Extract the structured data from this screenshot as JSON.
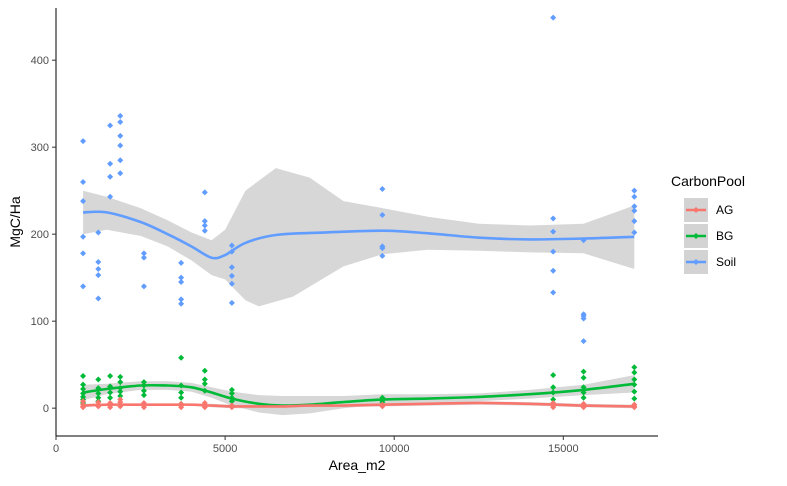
{
  "chart_data": {
    "type": "scatter",
    "xlabel": "Area_m2",
    "ylabel": "MgC/Ha",
    "xlim": [
      0,
      17800
    ],
    "ylim": [
      -32,
      460
    ],
    "x_ticks": [
      0,
      5000,
      10000,
      15000
    ],
    "y_ticks": [
      0,
      100,
      200,
      300,
      400
    ],
    "grid": false,
    "legend": {
      "title": "CarbonPool",
      "placement": "right",
      "entries": [
        "AG",
        "BG",
        "Soil"
      ]
    },
    "colors": {
      "AG": "#f8766d",
      "BG": "#00ba38",
      "Soil": "#619cff",
      "band": "#d3d3d3"
    },
    "series": [
      {
        "name": "Soil",
        "color": "#619cff",
        "points": [
          [
            800,
            307
          ],
          [
            800,
            260
          ],
          [
            800,
            238
          ],
          [
            800,
            197
          ],
          [
            800,
            178
          ],
          [
            800,
            140
          ],
          [
            1250,
            202
          ],
          [
            1250,
            168
          ],
          [
            1250,
            160
          ],
          [
            1250,
            153
          ],
          [
            1250,
            126
          ],
          [
            1600,
            325
          ],
          [
            1600,
            281
          ],
          [
            1600,
            266
          ],
          [
            1600,
            243
          ],
          [
            1900,
            336
          ],
          [
            1900,
            329
          ],
          [
            1900,
            313
          ],
          [
            1900,
            302
          ],
          [
            1900,
            285
          ],
          [
            1900,
            270
          ],
          [
            2600,
            178
          ],
          [
            2600,
            173
          ],
          [
            2600,
            140
          ],
          [
            3700,
            167
          ],
          [
            3700,
            150
          ],
          [
            3700,
            145
          ],
          [
            3700,
            125
          ],
          [
            3700,
            120
          ],
          [
            4400,
            248
          ],
          [
            4400,
            215
          ],
          [
            4400,
            210
          ],
          [
            4400,
            204
          ],
          [
            5200,
            187
          ],
          [
            5200,
            180
          ],
          [
            5200,
            162
          ],
          [
            5200,
            152
          ],
          [
            5200,
            143
          ],
          [
            5200,
            121
          ],
          [
            9650,
            252
          ],
          [
            9650,
            222
          ],
          [
            9650,
            186
          ],
          [
            9650,
            184
          ],
          [
            9650,
            175
          ],
          [
            14700,
            449
          ],
          [
            14700,
            218
          ],
          [
            14700,
            203
          ],
          [
            14700,
            180
          ],
          [
            14700,
            158
          ],
          [
            14700,
            133
          ],
          [
            15600,
            193
          ],
          [
            15600,
            108
          ],
          [
            15600,
            106
          ],
          [
            15600,
            103
          ],
          [
            15600,
            77
          ],
          [
            17100,
            250
          ],
          [
            17100,
            243
          ],
          [
            17100,
            232
          ],
          [
            17100,
            227
          ],
          [
            17100,
            215
          ],
          [
            17100,
            202
          ]
        ],
        "smooth": [
          [
            800,
            225
          ],
          [
            1500,
            225
          ],
          [
            2500,
            214
          ],
          [
            3300,
            200
          ],
          [
            4000,
            186
          ],
          [
            4600,
            173
          ],
          [
            5000,
            176
          ],
          [
            5600,
            190
          ],
          [
            6500,
            199
          ],
          [
            8000,
            202
          ],
          [
            9650,
            204
          ],
          [
            11000,
            201
          ],
          [
            12500,
            196
          ],
          [
            14000,
            194
          ],
          [
            15600,
            195
          ],
          [
            17100,
            197
          ]
        ],
        "band_upper": [
          [
            800,
            250
          ],
          [
            1500,
            243
          ],
          [
            2500,
            230
          ],
          [
            3300,
            216
          ],
          [
            4000,
            202
          ],
          [
            4600,
            193
          ],
          [
            5000,
            205
          ],
          [
            5600,
            250
          ],
          [
            6500,
            276
          ],
          [
            7500,
            265
          ],
          [
            8500,
            238
          ],
          [
            9650,
            230
          ],
          [
            11000,
            220
          ],
          [
            12500,
            212
          ],
          [
            14000,
            210
          ],
          [
            15600,
            212
          ],
          [
            17100,
            233
          ]
        ],
        "band_lower": [
          [
            800,
            200
          ],
          [
            1500,
            205
          ],
          [
            2500,
            198
          ],
          [
            3300,
            186
          ],
          [
            4000,
            170
          ],
          [
            4600,
            153
          ],
          [
            5000,
            148
          ],
          [
            5600,
            124
          ],
          [
            6000,
            117
          ],
          [
            7000,
            128
          ],
          [
            8500,
            163
          ],
          [
            9650,
            177
          ],
          [
            11000,
            182
          ],
          [
            12500,
            181
          ],
          [
            14000,
            179
          ],
          [
            15600,
            178
          ],
          [
            17100,
            160
          ]
        ]
      },
      {
        "name": "BG",
        "color": "#00ba38",
        "points": [
          [
            800,
            37
          ],
          [
            800,
            27
          ],
          [
            800,
            22
          ],
          [
            800,
            17
          ],
          [
            800,
            13
          ],
          [
            800,
            10
          ],
          [
            800,
            6
          ],
          [
            1250,
            33
          ],
          [
            1250,
            23
          ],
          [
            1250,
            17
          ],
          [
            1250,
            12
          ],
          [
            1250,
            8
          ],
          [
            1600,
            37
          ],
          [
            1600,
            25
          ],
          [
            1600,
            18
          ],
          [
            1600,
            12
          ],
          [
            1900,
            36
          ],
          [
            1900,
            30
          ],
          [
            1900,
            23
          ],
          [
            1900,
            19
          ],
          [
            1900,
            14
          ],
          [
            2600,
            30
          ],
          [
            2600,
            26
          ],
          [
            2600,
            20
          ],
          [
            2600,
            15
          ],
          [
            3700,
            58
          ],
          [
            3700,
            26
          ],
          [
            3700,
            18
          ],
          [
            3700,
            12
          ],
          [
            3700,
            5
          ],
          [
            4400,
            43
          ],
          [
            4400,
            33
          ],
          [
            4400,
            28
          ],
          [
            4400,
            20
          ],
          [
            5200,
            21
          ],
          [
            5200,
            17
          ],
          [
            5200,
            12
          ],
          [
            5200,
            8
          ],
          [
            9650,
            12
          ],
          [
            9650,
            9
          ],
          [
            9650,
            7
          ],
          [
            14700,
            38
          ],
          [
            14700,
            24
          ],
          [
            14700,
            18
          ],
          [
            14700,
            10
          ],
          [
            14700,
            5
          ],
          [
            15600,
            42
          ],
          [
            15600,
            35
          ],
          [
            15600,
            24
          ],
          [
            15600,
            18
          ],
          [
            15600,
            12
          ],
          [
            17100,
            47
          ],
          [
            17100,
            41
          ],
          [
            17100,
            33
          ],
          [
            17100,
            27
          ],
          [
            17100,
            19
          ],
          [
            17100,
            11
          ]
        ],
        "smooth": [
          [
            800,
            18
          ],
          [
            1500,
            22
          ],
          [
            2500,
            26
          ],
          [
            3300,
            26
          ],
          [
            4000,
            24
          ],
          [
            4600,
            18
          ],
          [
            5200,
            11
          ],
          [
            6000,
            5
          ],
          [
            6700,
            3
          ],
          [
            7500,
            4
          ],
          [
            8500,
            7
          ],
          [
            9650,
            10
          ],
          [
            11000,
            11
          ],
          [
            12500,
            13
          ],
          [
            14000,
            16
          ],
          [
            15600,
            21
          ],
          [
            17100,
            28
          ]
        ],
        "band_upper": [
          [
            800,
            27
          ],
          [
            1500,
            28
          ],
          [
            2500,
            31
          ],
          [
            3300,
            31
          ],
          [
            4000,
            29
          ],
          [
            4600,
            24
          ],
          [
            5200,
            19
          ],
          [
            6000,
            15
          ],
          [
            6700,
            14
          ],
          [
            7500,
            14
          ],
          [
            8500,
            14
          ],
          [
            9650,
            16
          ],
          [
            11000,
            16
          ],
          [
            12500,
            17
          ],
          [
            14000,
            21
          ],
          [
            15600,
            27
          ],
          [
            17100,
            38
          ]
        ],
        "band_lower": [
          [
            800,
            9
          ],
          [
            1500,
            16
          ],
          [
            2500,
            21
          ],
          [
            3300,
            21
          ],
          [
            4000,
            19
          ],
          [
            4600,
            12
          ],
          [
            5200,
            3
          ],
          [
            6000,
            -5
          ],
          [
            6700,
            -8
          ],
          [
            7500,
            -6
          ],
          [
            8500,
            0
          ],
          [
            9650,
            4
          ],
          [
            11000,
            6
          ],
          [
            12500,
            8
          ],
          [
            14000,
            11
          ],
          [
            15600,
            15
          ],
          [
            17100,
            18
          ]
        ]
      },
      {
        "name": "AG",
        "color": "#f8766d",
        "points": [
          [
            800,
            8
          ],
          [
            800,
            4
          ],
          [
            800,
            2
          ],
          [
            800,
            1
          ],
          [
            1250,
            7
          ],
          [
            1250,
            4
          ],
          [
            1250,
            2
          ],
          [
            1600,
            6
          ],
          [
            1600,
            3
          ],
          [
            1600,
            1
          ],
          [
            1900,
            10
          ],
          [
            1900,
            7
          ],
          [
            1900,
            4
          ],
          [
            1900,
            2
          ],
          [
            2600,
            6
          ],
          [
            2600,
            3
          ],
          [
            2600,
            1
          ],
          [
            3700,
            5
          ],
          [
            3700,
            3
          ],
          [
            3700,
            1
          ],
          [
            4400,
            6
          ],
          [
            4400,
            3
          ],
          [
            4400,
            1
          ],
          [
            5200,
            3
          ],
          [
            5200,
            1
          ],
          [
            9650,
            4
          ],
          [
            9650,
            2
          ],
          [
            14700,
            6
          ],
          [
            14700,
            3
          ],
          [
            14700,
            1
          ],
          [
            15600,
            5
          ],
          [
            15600,
            2
          ],
          [
            15600,
            1
          ],
          [
            17100,
            4
          ],
          [
            17100,
            2
          ],
          [
            17100,
            1
          ]
        ],
        "smooth": [
          [
            800,
            3
          ],
          [
            1500,
            4
          ],
          [
            2500,
            4
          ],
          [
            3300,
            4
          ],
          [
            4000,
            4
          ],
          [
            4600,
            3
          ],
          [
            5200,
            2
          ],
          [
            6000,
            2
          ],
          [
            6700,
            2
          ],
          [
            7500,
            3
          ],
          [
            8500,
            3
          ],
          [
            9650,
            4
          ],
          [
            11000,
            5
          ],
          [
            12500,
            6
          ],
          [
            14000,
            5
          ],
          [
            15600,
            3
          ],
          [
            17100,
            2
          ]
        ],
        "band_upper": [
          [
            800,
            5
          ],
          [
            1500,
            5
          ],
          [
            2500,
            5
          ],
          [
            3300,
            5
          ],
          [
            4000,
            5
          ],
          [
            4600,
            5
          ],
          [
            5200,
            4
          ],
          [
            6000,
            4
          ],
          [
            6700,
            4
          ],
          [
            7500,
            5
          ],
          [
            8500,
            5
          ],
          [
            9650,
            6
          ],
          [
            11000,
            7
          ],
          [
            12500,
            8
          ],
          [
            14000,
            7
          ],
          [
            15600,
            5
          ],
          [
            17100,
            4
          ]
        ],
        "band_lower": [
          [
            800,
            1
          ],
          [
            1500,
            3
          ],
          [
            2500,
            3
          ],
          [
            3300,
            3
          ],
          [
            4000,
            3
          ],
          [
            4600,
            1
          ],
          [
            5200,
            0
          ],
          [
            6000,
            0
          ],
          [
            6700,
            0
          ],
          [
            7500,
            1
          ],
          [
            8500,
            1
          ],
          [
            9650,
            2
          ],
          [
            11000,
            3
          ],
          [
            12500,
            4
          ],
          [
            14000,
            3
          ],
          [
            15600,
            1
          ],
          [
            17100,
            0
          ]
        ]
      }
    ]
  }
}
